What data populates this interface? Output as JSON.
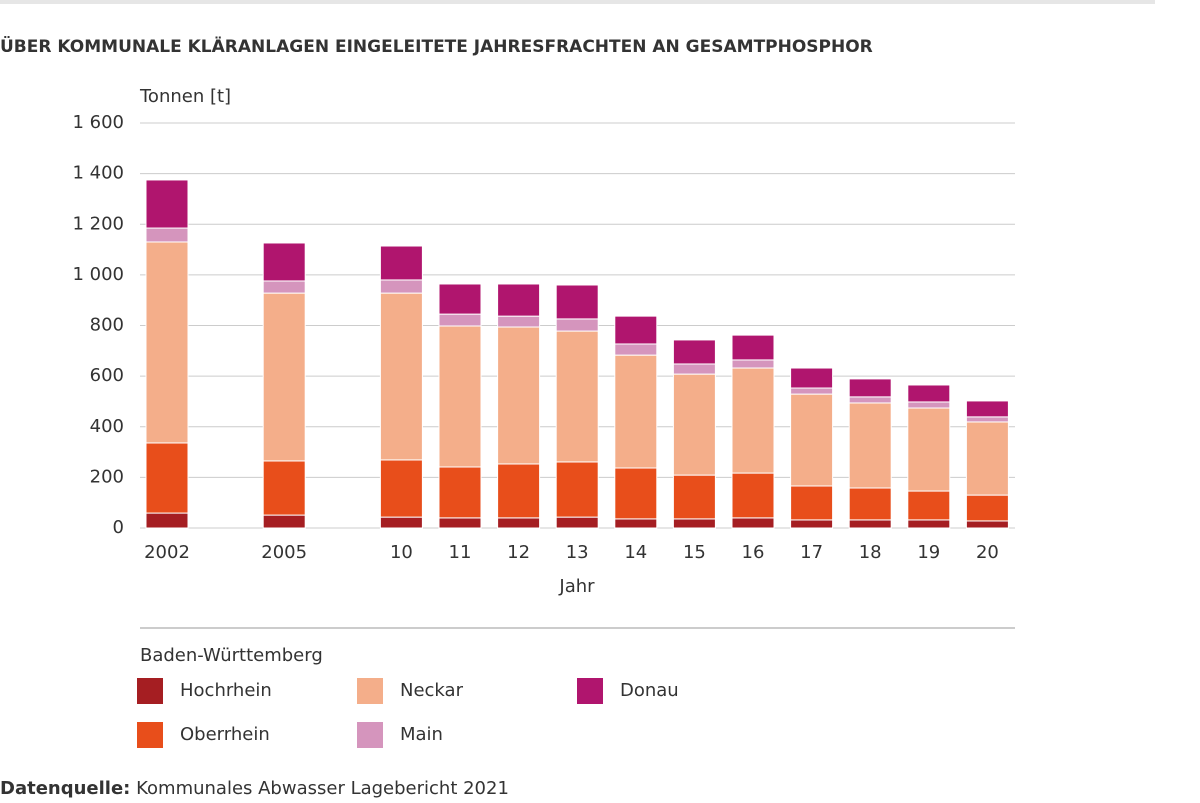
{
  "chart_data": {
    "type": "bar",
    "stacked": true,
    "title": "ÜBER KOMMUNALE KLÄRANLAGEN EINGELEITETE JAHRESFRACHTEN AN GESAMTPHOSPHOR",
    "y_label": "Tonnen [t]",
    "x_label": "Jahr",
    "legend_title": "Baden-Württemberg",
    "source_label": "Datenquelle:",
    "source": "Kommunales Abwasser Lagebericht 2021",
    "categories": [
      "2002",
      null,
      "2005",
      null,
      "10",
      "11",
      "12",
      "13",
      "14",
      "15",
      "16",
      "17",
      "18",
      "19",
      "20"
    ],
    "series": [
      {
        "name": "Hochrhein",
        "color": "#a51e22",
        "values": [
          59,
          null,
          51,
          null,
          43,
          40,
          40,
          43,
          36,
          36,
          40,
          32,
          32,
          32,
          28
        ]
      },
      {
        "name": "Oberrhein",
        "color": "#e84e1b",
        "values": [
          277,
          null,
          214,
          null,
          226,
          201,
          213,
          218,
          201,
          173,
          177,
          134,
          126,
          114,
          102
        ]
      },
      {
        "name": "Neckar",
        "color": "#f4ae8a",
        "values": [
          794,
          null,
          663,
          null,
          659,
          557,
          541,
          517,
          446,
          399,
          415,
          363,
          336,
          328,
          289
        ]
      },
      {
        "name": "Main",
        "color": "#d595bd",
        "values": [
          55,
          null,
          48,
          null,
          52,
          47,
          43,
          48,
          44,
          40,
          32,
          24,
          24,
          24,
          20
        ]
      },
      {
        "name": "Donau",
        "color": "#b0156e",
        "values": [
          190,
          null,
          150,
          null,
          134,
          119,
          127,
          134,
          110,
          95,
          98,
          79,
          71,
          67,
          63
        ]
      }
    ],
    "ylim": [
      0,
      1600
    ],
    "yticks": [
      0,
      200,
      400,
      600,
      800,
      {
        "value": 1000,
        "label": "1 000"
      },
      {
        "value": 1200,
        "label": "1 200"
      },
      {
        "value": 1400,
        "label": "1 400"
      },
      {
        "value": 1600,
        "label": "1 600"
      }
    ],
    "grid": true
  }
}
